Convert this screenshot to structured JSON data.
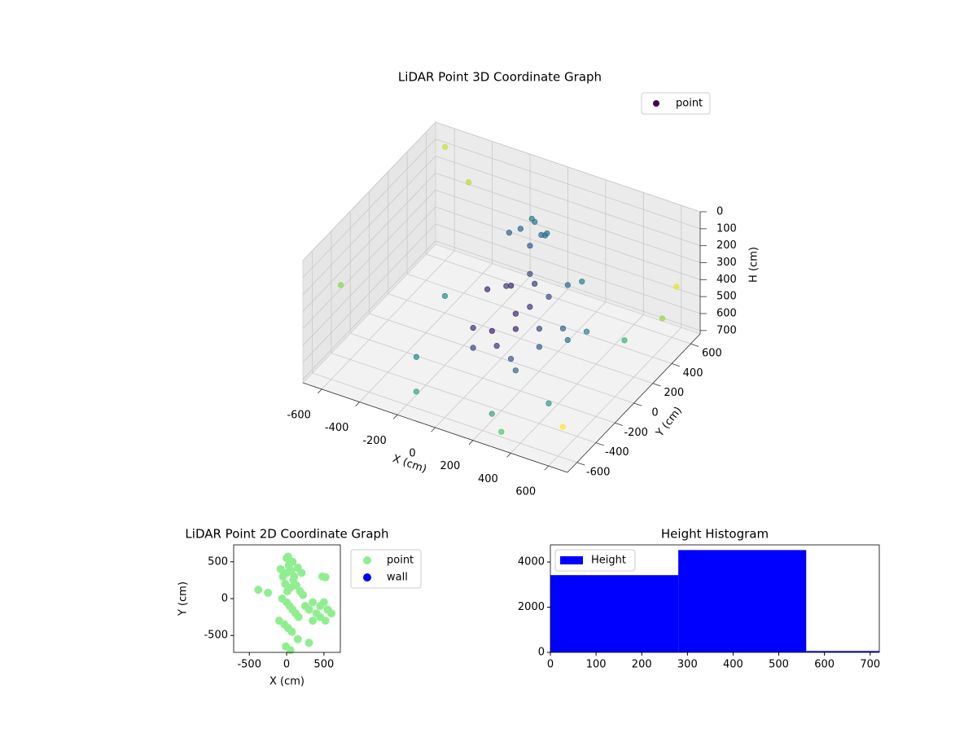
{
  "chart_data": [
    {
      "type": "scatter3d",
      "title": "LiDAR Point 3D Coordinate Graph",
      "xlabel": "X (cm)",
      "ylabel": "Y (cm)",
      "zlabel": "H (cm)",
      "xlim": [
        -700,
        700
      ],
      "ylim": [
        -700,
        700
      ],
      "zlim": [
        0,
        720
      ],
      "zinvert": true,
      "xticks": [
        -600,
        -400,
        -200,
        0,
        200,
        400,
        600
      ],
      "yticks": [
        -600,
        -400,
        -200,
        0,
        200,
        400,
        600
      ],
      "zticks": [
        0,
        100,
        200,
        300,
        400,
        500,
        600,
        700
      ],
      "grid": true,
      "legend": "upper right",
      "series": [
        {
          "name": "point",
          "color": "#440154",
          "colormap": "viridis",
          "x": [
            -50,
            0,
            50,
            -100,
            20,
            80,
            -30,
            60,
            0,
            100,
            -100,
            200,
            150,
            50,
            -50,
            250,
            300,
            100,
            0,
            100,
            200,
            -100,
            300,
            50,
            150,
            250,
            350,
            400,
            -50,
            200,
            -300,
            200,
            400,
            -200,
            500,
            -400,
            300,
            600,
            -600,
            -650,
            650,
            -500,
            600
          ],
          "y": [
            300,
            350,
            320,
            280,
            260,
            300,
            380,
            360,
            100,
            150,
            50,
            100,
            0,
            200,
            150,
            200,
            250,
            -50,
            -100,
            -50,
            0,
            -100,
            50,
            -150,
            -200,
            -100,
            0,
            100,
            -200,
            -250,
            -300,
            -500,
            -300,
            -500,
            300,
            200,
            -600,
            500,
            600,
            -400,
            -650,
            650,
            650
          ],
          "z": [
            150,
            120,
            160,
            180,
            200,
            140,
            130,
            170,
            350,
            330,
            380,
            340,
            360,
            320,
            400,
            310,
            300,
            390,
            500,
            480,
            470,
            520,
            460,
            540,
            550,
            500,
            480,
            470,
            560,
            570,
            650,
            680,
            660,
            700,
            600,
            620,
            690,
            550,
            50,
            300,
            500,
            250,
            450
          ]
        }
      ]
    },
    {
      "type": "scatter",
      "title": "LiDAR Point 2D Coordinate Graph",
      "xlabel": "X (cm)",
      "ylabel": "Y (cm)",
      "xlim": [
        -710,
        720
      ],
      "ylim": [
        -730,
        730
      ],
      "xticks": [
        -500,
        0,
        500
      ],
      "yticks": [
        -500,
        0,
        500
      ],
      "legend": "outside right",
      "series": [
        {
          "name": "point",
          "color": "#90ee90",
          "x": [
            -80,
            -50,
            0,
            30,
            60,
            100,
            150,
            200,
            -20,
            10,
            50,
            90,
            130,
            180,
            220,
            -60,
            0,
            40,
            80,
            120,
            160,
            -100,
            -30,
            20,
            70,
            250,
            300,
            350,
            400,
            450,
            500,
            550,
            600,
            350,
            450,
            520,
            -380,
            -250,
            0,
            20,
            80,
            150,
            300,
            -10,
            50,
            480,
            520
          ],
          "y": [
            400,
            300,
            350,
            450,
            380,
            300,
            420,
            350,
            200,
            100,
            150,
            250,
            180,
            100,
            50,
            0,
            -50,
            -100,
            -150,
            -200,
            -250,
            -300,
            -350,
            -400,
            -450,
            -100,
            -150,
            -50,
            -200,
            -100,
            -50,
            -150,
            -200,
            -300,
            -250,
            -300,
            120,
            80,
            550,
            570,
            500,
            -550,
            -600,
            -650,
            -700,
            300,
            290
          ]
        },
        {
          "name": "wall",
          "color": "#0000ff",
          "x": [],
          "y": []
        }
      ]
    },
    {
      "type": "histogram",
      "title": "Height Histogram",
      "bins": [
        0,
        280,
        560,
        840
      ],
      "values": [
        3420,
        4530,
        60
      ],
      "series_name": "Height",
      "color": "#0000ff",
      "xlim": [
        0,
        720
      ],
      "ylim": [
        0,
        4760
      ],
      "xticks": [
        0,
        100,
        200,
        300,
        400,
        500,
        600,
        700
      ],
      "yticks": [
        0,
        2000,
        4000
      ],
      "legend": "upper left"
    }
  ]
}
